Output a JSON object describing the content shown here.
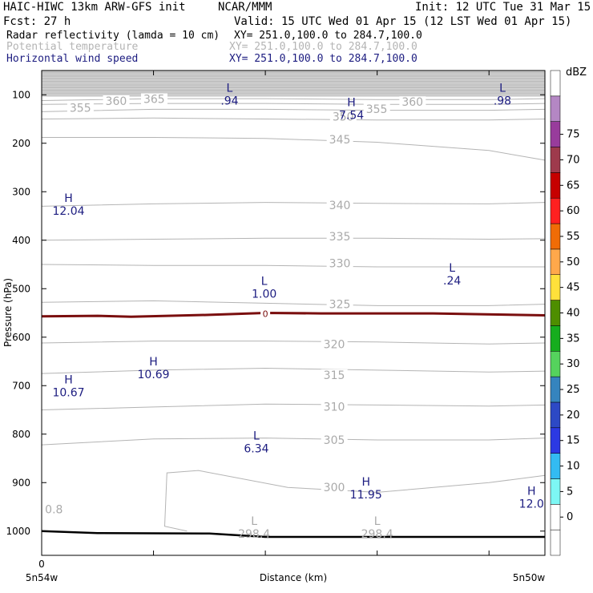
{
  "header": {
    "title_left": "HAIC-HIWC 13km ARW-GFS init",
    "title_center": "NCAR/MMM",
    "init": "Init: 12 UTC Tue 31 Mar 15",
    "fcst": "Fcst:   27 h",
    "valid": "Valid: 15 UTC Wed 01 Apr 15 (12 LST Wed 01 Apr 15)",
    "fields": [
      {
        "name": "Radar reflectivity (lamda = 10 cm)",
        "xy": "XY= 251.0,100.0 to 284.7,100.0",
        "color": "#000000"
      },
      {
        "name": "Potential temperature",
        "xy": "XY= 251.0,100.0 to 284.7,100.0",
        "color": "#b4b4b4"
      },
      {
        "name": "Horizontal wind speed",
        "xy": "XY= 251.0,100.0 to 284.7,100.0",
        "color": "#1c1c80"
      }
    ]
  },
  "chart_data": {
    "type": "cross-section",
    "ylabel": "Pressure (hPa)",
    "xlabel": "Distance (km)",
    "y_axis": {
      "scale": "linear",
      "inverted": true,
      "ylim": [
        50,
        1050
      ],
      "ticks": [
        100,
        200,
        300,
        400,
        500,
        600,
        700,
        800,
        900,
        1000
      ]
    },
    "x_axis": {
      "xlim": [
        0,
        4.5
      ],
      "ticks": [
        0,
        1,
        2,
        3,
        4
      ],
      "tick_labels": [
        "0",
        "",
        "",
        "",
        ""
      ],
      "endpoint_labels": [
        "5n54w",
        "5n50w"
      ]
    },
    "terrain_pressure": [
      [
        0,
        1000
      ],
      [
        0.5,
        1004
      ],
      [
        1.5,
        1005
      ],
      [
        2,
        1012
      ],
      [
        4.5,
        1012
      ]
    ],
    "zero_reflectivity_contour_hpa": [
      [
        0,
        557
      ],
      [
        0.5,
        556
      ],
      [
        0.8,
        558
      ],
      [
        1.5,
        554
      ],
      [
        2,
        550
      ],
      [
        2.5,
        551
      ],
      [
        3.5,
        551
      ],
      [
        4.5,
        555
      ]
    ],
    "zero_contour_label": "0",
    "theta_contours": [
      {
        "value": 300,
        "label": "300",
        "points": [
          [
            1.3,
            1000
          ],
          [
            1.1,
            990
          ],
          [
            1.12,
            880
          ],
          [
            1.4,
            875
          ],
          [
            2.2,
            910
          ],
          [
            3,
            920
          ],
          [
            4,
            900
          ],
          [
            4.5,
            885
          ]
        ]
      },
      {
        "value": 305,
        "label": "305",
        "points": [
          [
            0,
            822
          ],
          [
            1,
            810
          ],
          [
            2,
            808
          ],
          [
            3,
            812
          ],
          [
            4,
            812
          ],
          [
            4.5,
            808
          ]
        ]
      },
      {
        "value": 310,
        "label": "310",
        "points": [
          [
            0,
            750
          ],
          [
            1,
            744
          ],
          [
            2,
            738
          ],
          [
            3,
            740
          ],
          [
            4,
            742
          ],
          [
            4.5,
            740
          ]
        ]
      },
      {
        "value": 315,
        "label": "315",
        "points": [
          [
            0,
            675
          ],
          [
            1,
            668
          ],
          [
            2,
            664
          ],
          [
            3,
            668
          ],
          [
            4,
            672
          ],
          [
            4.5,
            670
          ]
        ]
      },
      {
        "value": 320,
        "label": "320",
        "points": [
          [
            0,
            612
          ],
          [
            1,
            608
          ],
          [
            2,
            608
          ],
          [
            3,
            610
          ],
          [
            4,
            614
          ],
          [
            4.5,
            612
          ]
        ]
      },
      {
        "value": 325,
        "label": "325",
        "points": [
          [
            0,
            528
          ],
          [
            1,
            525
          ],
          [
            2,
            530
          ],
          [
            3,
            535
          ],
          [
            4,
            535
          ],
          [
            4.5,
            532
          ]
        ]
      },
      {
        "value": 330,
        "label": "330",
        "points": [
          [
            0,
            450
          ],
          [
            1,
            452
          ],
          [
            2,
            452
          ],
          [
            3,
            455
          ],
          [
            4,
            455
          ],
          [
            4.5,
            455
          ]
        ]
      },
      {
        "value": 335,
        "label": "335",
        "points": [
          [
            0,
            400
          ],
          [
            1,
            398
          ],
          [
            2,
            396
          ],
          [
            3,
            396
          ],
          [
            4,
            398
          ],
          [
            4.5,
            397
          ]
        ]
      },
      {
        "value": 340,
        "label": "340",
        "points": [
          [
            0,
            330
          ],
          [
            1,
            325
          ],
          [
            2,
            322
          ],
          [
            3,
            324
          ],
          [
            4,
            325
          ],
          [
            4.5,
            322
          ]
        ]
      },
      {
        "value": 345,
        "label": "345",
        "points": [
          [
            0,
            188
          ],
          [
            1,
            188
          ],
          [
            2,
            190
          ],
          [
            3,
            198
          ],
          [
            4,
            215
          ],
          [
            4.5,
            235
          ]
        ]
      },
      {
        "value": 350,
        "label": "350",
        "points": [
          [
            0,
            150
          ],
          [
            1,
            148
          ],
          [
            2,
            150
          ],
          [
            3,
            152
          ],
          [
            4,
            152
          ],
          [
            4.5,
            150
          ]
        ]
      },
      {
        "value": 355,
        "label": "355",
        "points": [
          [
            0,
            135
          ],
          [
            1,
            130
          ],
          [
            2,
            130
          ],
          [
            3,
            132
          ],
          [
            4,
            132
          ],
          [
            4.5,
            130
          ]
        ]
      },
      {
        "value": 360,
        "label": "360",
        "points": [
          [
            0,
            120
          ],
          [
            1,
            118
          ],
          [
            2,
            118
          ],
          [
            3,
            120
          ],
          [
            4,
            120
          ],
          [
            4.5,
            118
          ]
        ]
      },
      {
        "value": 365,
        "label": "365",
        "points": [
          [
            0,
            112
          ],
          [
            1,
            108
          ],
          [
            2,
            108
          ],
          [
            3,
            110
          ],
          [
            4,
            110
          ],
          [
            4.5,
            108
          ]
        ]
      }
    ],
    "theta_labels": [
      {
        "text": "355",
        "x": 0.25,
        "p": 135
      },
      {
        "text": "360",
        "x": 0.57,
        "p": 121
      },
      {
        "text": "365",
        "x": 0.91,
        "p": 117
      },
      {
        "text": "350",
        "x": 2.6,
        "p": 153
      },
      {
        "text": "355",
        "x": 2.9,
        "p": 138
      },
      {
        "text": "360",
        "x": 3.22,
        "p": 123
      },
      {
        "text": "345",
        "x": 2.57,
        "p": 200
      },
      {
        "text": "340",
        "x": 2.57,
        "p": 336
      },
      {
        "text": "335",
        "x": 2.57,
        "p": 400
      },
      {
        "text": "330",
        "x": 2.57,
        "p": 456
      },
      {
        "text": "325",
        "x": 2.57,
        "p": 540
      },
      {
        "text": "320",
        "x": 2.52,
        "p": 623
      },
      {
        "text": "315",
        "x": 2.52,
        "p": 686
      },
      {
        "text": "310",
        "x": 2.52,
        "p": 752
      },
      {
        "text": "305",
        "x": 2.52,
        "p": 820
      },
      {
        "text": "300",
        "x": 2.52,
        "p": 918
      },
      {
        "text": "0.8",
        "x": 0.03,
        "p": 963
      }
    ],
    "wind_extrema": [
      {
        "type": "L",
        "value": ".94",
        "x": 1.68,
        "p": 110
      },
      {
        "type": "H",
        "value": "7.54",
        "x": 2.77,
        "p": 140
      },
      {
        "type": "L",
        "value": ".98",
        "x": 4.12,
        "p": 110
      },
      {
        "type": "H",
        "value": "12.04",
        "x": 0.24,
        "p": 338
      },
      {
        "type": "L",
        "value": "1.00",
        "x": 1.99,
        "p": 509
      },
      {
        "type": "L",
        "value": ".24",
        "x": 3.67,
        "p": 481
      },
      {
        "type": "H",
        "value": "10.69",
        "x": 1.0,
        "p": 675
      },
      {
        "type": "H",
        "value": "10.67",
        "x": 0.24,
        "p": 712
      },
      {
        "type": "L",
        "value": "6.34",
        "x": 1.92,
        "p": 828
      },
      {
        "type": "H",
        "value": "11.95",
        "x": 2.9,
        "p": 923
      },
      {
        "type": "H",
        "value": "12.0",
        "x": 4.38,
        "p": 942
      },
      {
        "type": "L",
        "value": "298.4",
        "x": 1.9,
        "p": 1004,
        "faint": true
      },
      {
        "type": "L",
        "value": "298.4",
        "x": 3.0,
        "p": 1004,
        "faint": true
      }
    ],
    "colorbar": {
      "label": "dBZ",
      "levels": [
        -5,
        0,
        5,
        10,
        15,
        20,
        25,
        30,
        35,
        40,
        45,
        50,
        55,
        60,
        65,
        70,
        75,
        80
      ],
      "tick_labels": [
        "0",
        "5",
        "10",
        "15",
        "20",
        "25",
        "30",
        "35",
        "40",
        "45",
        "50",
        "55",
        "60",
        "65",
        "70",
        "75"
      ],
      "colors": [
        "#ffffff",
        "#ffffff",
        "#7df7f4",
        "#33bbf2",
        "#2c39e3",
        "#2d49c5",
        "#3584be",
        "#55d35d",
        "#16ad1e",
        "#4e8e00",
        "#ffe13b",
        "#ffa84b",
        "#f06c06",
        "#ff2020",
        "#c60000",
        "#9e3a4c",
        "#983c9c",
        "#b487c4",
        "#ffffff"
      ]
    }
  }
}
